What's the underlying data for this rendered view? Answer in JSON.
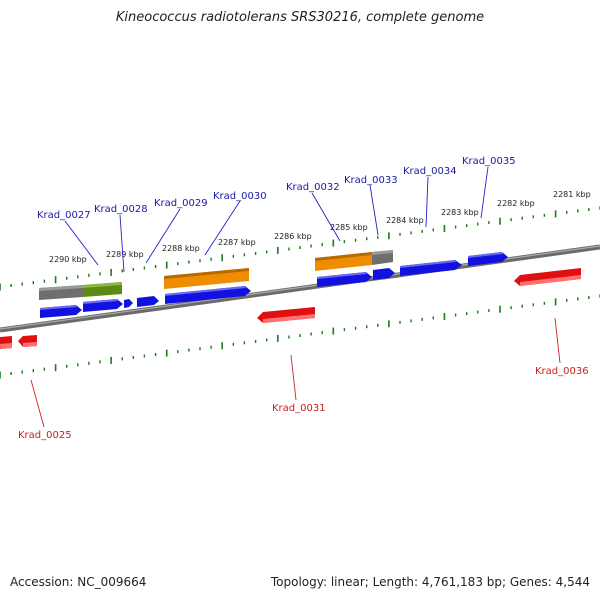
{
  "title": "Kineococcus radiotolerans SRS30216, complete genome",
  "accession_text": "Accession: NC_009664",
  "topology_text": "Topology: linear; Length: 4,761,183 bp; Genes: 4,544",
  "kbp_labels": [
    "2290 kbp",
    "2289 kbp",
    "2288 kbp",
    "2287 kbp",
    "2286 kbp",
    "2285 kbp",
    "2284 kbp",
    "2283 kbp",
    "2282 kbp",
    "2281 kbp"
  ],
  "genes_top": [
    "Krad_0027",
    "Krad_0028",
    "Krad_0029",
    "Krad_0030",
    "Krad_0032",
    "Krad_0033",
    "Krad_0034",
    "Krad_0035"
  ],
  "genes_bottom": [
    "Krad_0025",
    "Krad_0031",
    "Krad_0036"
  ],
  "colors": {
    "forward_gene": "#1010e0",
    "reverse_gene": "#e01010",
    "orange_feature": "#f08c00",
    "green_feature": "#5a8a10",
    "grey_feature": "#707070",
    "backbone": "#808080",
    "ticks": "#1a7a1a",
    "label_blue": "#1a1aa6",
    "label_red": "#c81e1e"
  }
}
